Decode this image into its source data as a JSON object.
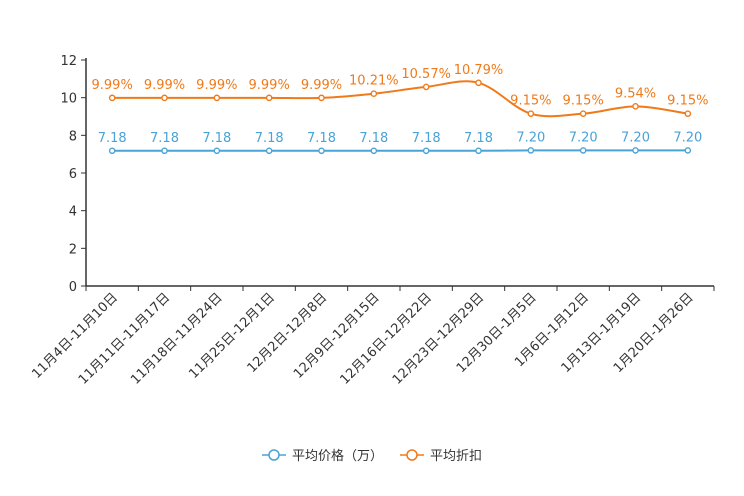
{
  "chart_data": {
    "type": "line",
    "title": "",
    "xlabel": "",
    "ylabel": "",
    "ylim": [
      0,
      12
    ],
    "yticks": [
      "0",
      "2",
      "4",
      "6",
      "8",
      "10",
      "12"
    ],
    "categories": [
      "11月4日-11月10日",
      "11月11日-11月17日",
      "11月18日-11月24日",
      "11月25日-12月1日",
      "12月2日-12月8日",
      "12月9日-12月15日",
      "12月16日-12月22日",
      "12月23日-12月29日",
      "12月30日-1月5日",
      "1月6日-1月12日",
      "1月13日-1月19日",
      "1月20日-1月26日"
    ],
    "series": [
      {
        "name": "平均价格（万）",
        "color": "#4aa3d6",
        "values": [
          7.18,
          7.18,
          7.18,
          7.18,
          7.18,
          7.18,
          7.18,
          7.18,
          7.2,
          7.2,
          7.2,
          7.2
        ],
        "labels": [
          "7.18",
          "7.18",
          "7.18",
          "7.18",
          "7.18",
          "7.18",
          "7.18",
          "7.18",
          "7.20",
          "7.20",
          "7.20",
          "7.20"
        ]
      },
      {
        "name": "平均折扣",
        "color": "#f07a1a",
        "values": [
          9.99,
          9.99,
          9.99,
          9.99,
          9.99,
          10.21,
          10.57,
          10.79,
          9.15,
          9.15,
          9.54,
          9.15
        ],
        "labels": [
          "9.99%",
          "9.99%",
          "9.99%",
          "9.99%",
          "9.99%",
          "10.21%",
          "10.57%",
          "10.79%",
          "9.15%",
          "9.15%",
          "9.54%",
          "9.15%"
        ]
      }
    ],
    "legend": "bottom-center",
    "grid": false
  }
}
